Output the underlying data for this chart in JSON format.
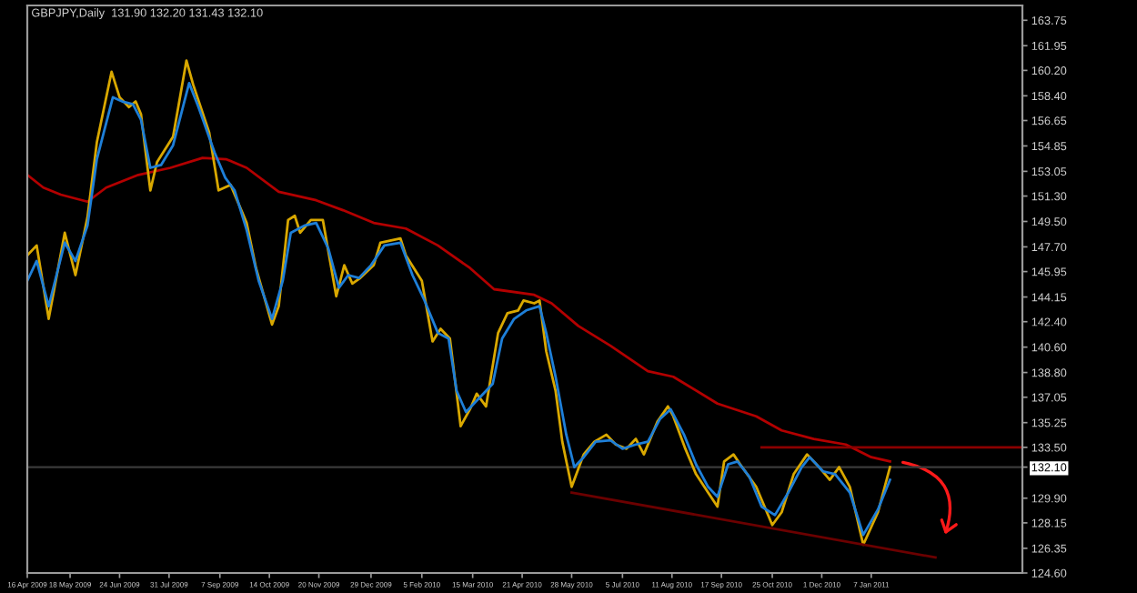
{
  "chart_data": {
    "type": "line",
    "title": "GBPJPY,Daily  131.90 132.20 131.43 132.10",
    "xlim": [
      "2009-04-16",
      "2011-04-30"
    ],
    "ylim": [
      124.6,
      164.8
    ],
    "xticks": [
      {
        "value": "2009-04-16",
        "label": "16 Apr 2009"
      },
      {
        "value": "2009-05-18",
        "label": "18 May 2009"
      },
      {
        "value": "2009-06-24",
        "label": "24 Jun 2009"
      },
      {
        "value": "2009-07-31",
        "label": "31 Jul 2009"
      },
      {
        "value": "2009-09-07",
        "label": "7 Sep 2009"
      },
      {
        "value": "2009-10-14",
        "label": "14 Oct 2009"
      },
      {
        "value": "2009-11-20",
        "label": "20 Nov 2009"
      },
      {
        "value": "2009-12-29",
        "label": "29 Dec 2009"
      },
      {
        "value": "2010-02-05",
        "label": "5 Feb 2010"
      },
      {
        "value": "2010-03-15",
        "label": "15 Mar 2010"
      },
      {
        "value": "2010-04-21",
        "label": "21 Apr 2010"
      },
      {
        "value": "2010-05-28",
        "label": "28 May 2010"
      },
      {
        "value": "2010-07-05",
        "label": "5 Jul 2010"
      },
      {
        "value": "2010-08-11",
        "label": "11 Aug 2010"
      },
      {
        "value": "2010-09-17",
        "label": "17 Sep 2010"
      },
      {
        "value": "2010-10-25",
        "label": "25 Oct 2010"
      },
      {
        "value": "2010-12-01",
        "label": "1 Dec 2010"
      },
      {
        "value": "2011-01-07",
        "label": "7 Jan 2011"
      }
    ],
    "yticks": [
      {
        "value": 163.75,
        "label": "163.75"
      },
      {
        "value": 161.95,
        "label": "161.95"
      },
      {
        "value": 160.2,
        "label": "160.20"
      },
      {
        "value": 158.4,
        "label": "158.40"
      },
      {
        "value": 156.65,
        "label": "156.65"
      },
      {
        "value": 154.85,
        "label": "154.85"
      },
      {
        "value": 153.05,
        "label": "153.05"
      },
      {
        "value": 151.3,
        "label": "151.30"
      },
      {
        "value": 149.5,
        "label": "149.50"
      },
      {
        "value": 147.7,
        "label": "147.70"
      },
      {
        "value": 145.95,
        "label": "145.95"
      },
      {
        "value": 144.15,
        "label": "144.15"
      },
      {
        "value": 142.4,
        "label": "142.40"
      },
      {
        "value": 140.6,
        "label": "140.60"
      },
      {
        "value": 138.8,
        "label": "138.80"
      },
      {
        "value": 137.05,
        "label": "137.05"
      },
      {
        "value": 135.25,
        "label": "135.25"
      },
      {
        "value": 133.5,
        "label": "133.50"
      },
      {
        "value": 132.1,
        "label": "132.10"
      },
      {
        "value": 129.9,
        "label": "129.90"
      },
      {
        "value": 128.15,
        "label": "128.15"
      },
      {
        "value": 126.35,
        "label": "126.35"
      },
      {
        "value": 124.6,
        "label": "124.60"
      }
    ],
    "legend": false,
    "ref_lines": [
      {
        "axis": "y",
        "value": 132.1,
        "label": null,
        "color": "#3a3a3a"
      }
    ],
    "series": [
      {
        "color": "#b30000",
        "x": [
          "2009-04-16",
          "2009-04-28",
          "2009-05-11",
          "2009-05-31",
          "2009-06-14",
          "2009-07-08",
          "2009-08-01",
          "2009-08-25",
          "2009-09-12",
          "2009-09-27",
          "2009-10-21",
          "2009-11-18",
          "2009-12-08",
          "2009-12-31",
          "2010-01-24",
          "2010-02-17",
          "2010-03-13",
          "2010-03-31",
          "2010-04-30",
          "2010-05-13",
          "2010-06-02",
          "2010-06-26",
          "2010-07-24",
          "2010-08-12",
          "2010-09-14",
          "2010-10-13",
          "2010-11-01",
          "2010-11-25",
          "2010-12-19",
          "2011-01-07",
          "2011-01-21"
        ],
        "values": [
          152.8,
          151.9,
          151.4,
          150.9,
          151.9,
          152.8,
          153.3,
          154.0,
          153.9,
          153.3,
          151.6,
          151.0,
          150.3,
          149.4,
          149.0,
          147.8,
          146.2,
          144.7,
          144.3,
          143.7,
          142.1,
          140.7,
          138.9,
          138.5,
          136.6,
          135.7,
          134.7,
          134.1,
          133.7,
          132.8,
          132.5
        ]
      },
      {
        "color": "#d9a800",
        "x": [
          "2009-04-16",
          "2009-04-23",
          "2009-05-02",
          "2009-05-14",
          "2009-05-22",
          "2009-05-31",
          "2009-06-07",
          "2009-06-18",
          "2009-06-24",
          "2009-07-01",
          "2009-07-06",
          "2009-07-10",
          "2009-07-17",
          "2009-07-22",
          "2009-08-03",
          "2009-08-13",
          "2009-08-18",
          "2009-08-30",
          "2009-09-06",
          "2009-09-15",
          "2009-09-27",
          "2009-10-04",
          "2009-10-16",
          "2009-10-21",
          "2009-10-28",
          "2009-11-02",
          "2009-11-06",
          "2009-11-14",
          "2009-11-23",
          "2009-12-03",
          "2009-12-09",
          "2009-12-15",
          "2009-12-21",
          "2009-12-31",
          "2010-01-05",
          "2010-01-20",
          "2010-01-24",
          "2010-02-05",
          "2010-02-13",
          "2010-02-19",
          "2010-02-26",
          "2010-03-06",
          "2010-03-13",
          "2010-03-18",
          "2010-03-25",
          "2010-04-03",
          "2010-04-10",
          "2010-04-18",
          "2010-04-22",
          "2010-04-30",
          "2010-05-04",
          "2010-05-09",
          "2010-05-16",
          "2010-05-21",
          "2010-05-28",
          "2010-06-06",
          "2010-06-14",
          "2010-06-23",
          "2010-06-30",
          "2010-07-08",
          "2010-07-15",
          "2010-07-21",
          "2010-07-31",
          "2010-08-08",
          "2010-08-12",
          "2010-08-21",
          "2010-08-29",
          "2010-09-07",
          "2010-09-14",
          "2010-09-19",
          "2010-09-26",
          "2010-10-01",
          "2010-10-13",
          "2010-10-25",
          "2010-11-01",
          "2010-11-10",
          "2010-11-20",
          "2010-11-29",
          "2010-12-07",
          "2010-12-14",
          "2010-12-22",
          "2011-01-01",
          "2011-01-12",
          "2011-01-21"
        ],
        "values": [
          147.1,
          147.8,
          142.6,
          148.7,
          145.7,
          149.8,
          155.1,
          160.1,
          158.3,
          157.6,
          158.0,
          157.1,
          151.7,
          153.7,
          155.5,
          160.9,
          159.2,
          155.8,
          151.7,
          152.1,
          149.4,
          146.2,
          142.2,
          143.5,
          149.6,
          149.9,
          148.7,
          149.6,
          149.6,
          144.2,
          146.4,
          145.1,
          145.5,
          146.4,
          148.0,
          148.3,
          147.1,
          145.3,
          141.0,
          141.9,
          141.2,
          135.0,
          136.2,
          137.3,
          136.4,
          141.6,
          143.0,
          143.2,
          143.9,
          143.7,
          143.9,
          140.3,
          137.5,
          133.9,
          130.7,
          133.0,
          133.9,
          134.4,
          133.7,
          133.4,
          134.1,
          133.0,
          135.3,
          136.4,
          135.7,
          133.4,
          131.6,
          130.3,
          129.3,
          132.5,
          133.0,
          132.3,
          130.7,
          128.0,
          128.9,
          131.6,
          133.0,
          132.1,
          131.2,
          132.1,
          130.7,
          126.6,
          128.9,
          132.1
        ]
      },
      {
        "color": "#1e7fd8",
        "x": [
          "2009-04-16",
          "2009-04-23",
          "2009-05-02",
          "2009-05-14",
          "2009-05-22",
          "2009-05-31",
          "2009-06-07",
          "2009-06-19",
          "2009-06-26",
          "2009-07-04",
          "2009-07-10",
          "2009-07-17",
          "2009-07-25",
          "2009-08-03",
          "2009-08-15",
          "2009-08-22",
          "2009-09-03",
          "2009-09-11",
          "2009-09-18",
          "2009-09-27",
          "2009-10-06",
          "2009-10-16",
          "2009-10-24",
          "2009-10-30",
          "2009-11-09",
          "2009-11-18",
          "2009-11-27",
          "2009-12-05",
          "2009-12-12",
          "2009-12-20",
          "2009-12-29",
          "2010-01-08",
          "2010-01-20",
          "2010-01-29",
          "2010-02-07",
          "2010-02-17",
          "2010-02-25",
          "2010-03-03",
          "2010-03-10",
          "2010-03-19",
          "2010-03-30",
          "2010-04-06",
          "2010-04-15",
          "2010-04-24",
          "2010-05-04",
          "2010-05-09",
          "2010-05-16",
          "2010-05-24",
          "2010-05-30",
          "2010-06-06",
          "2010-06-15",
          "2010-06-26",
          "2010-07-05",
          "2010-07-15",
          "2010-07-24",
          "2010-08-02",
          "2010-08-10",
          "2010-08-20",
          "2010-08-29",
          "2010-09-07",
          "2010-09-14",
          "2010-09-22",
          "2010-09-29",
          "2010-10-08",
          "2010-10-17",
          "2010-10-27",
          "2010-11-06",
          "2010-11-16",
          "2010-11-22",
          "2010-12-02",
          "2010-12-11",
          "2010-12-22",
          "2011-01-01",
          "2011-01-12",
          "2011-01-21"
        ],
        "values": [
          145.3,
          146.7,
          143.5,
          148.0,
          146.7,
          149.2,
          153.9,
          158.3,
          158.0,
          157.8,
          156.7,
          153.3,
          153.5,
          154.9,
          159.3,
          157.6,
          154.4,
          152.6,
          151.7,
          148.9,
          145.3,
          142.6,
          145.3,
          148.7,
          149.2,
          149.4,
          147.6,
          144.8,
          145.7,
          145.5,
          146.4,
          147.8,
          148.0,
          145.7,
          143.9,
          141.6,
          141.2,
          137.5,
          136.0,
          136.9,
          138.0,
          141.2,
          142.6,
          143.2,
          143.5,
          141.6,
          138.5,
          134.4,
          132.1,
          132.8,
          133.9,
          134.0,
          133.4,
          133.7,
          133.9,
          135.5,
          136.2,
          134.4,
          132.3,
          130.7,
          130.0,
          132.3,
          132.5,
          131.4,
          129.3,
          128.7,
          130.3,
          132.1,
          132.8,
          131.8,
          131.6,
          130.3,
          127.3,
          129.1,
          131.2
        ]
      },
      {
        "color": "#6b0000",
        "x": [
          "2010-05-28",
          "2011-02-24"
        ],
        "values": [
          130.3,
          125.7
        ]
      },
      {
        "color": "#8b0000",
        "x": [
          "2010-10-17",
          "2011-04-30"
        ],
        "values": [
          133.5,
          133.5
        ]
      }
    ]
  }
}
